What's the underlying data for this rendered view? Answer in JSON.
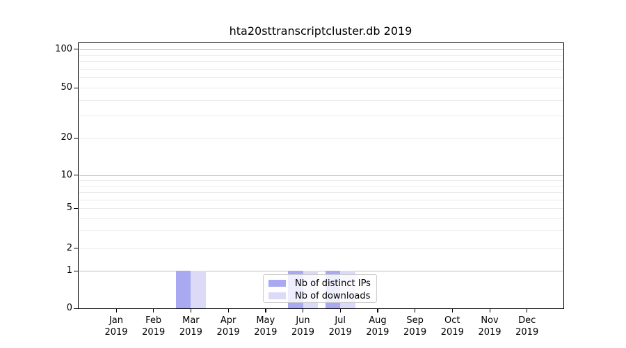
{
  "chart_data": {
    "type": "bar",
    "title": "hta20sttranscriptcluster.db 2019",
    "categories": [
      "Jan 2019",
      "Feb 2019",
      "Mar 2019",
      "Apr 2019",
      "May 2019",
      "Jun 2019",
      "Jul 2019",
      "Aug 2019",
      "Sep 2019",
      "Oct 2019",
      "Nov 2019",
      "Dec 2019"
    ],
    "series": [
      {
        "name": "Nb of distinct IPs",
        "color": "#a9a9f1",
        "values": [
          0,
          0,
          1,
          0,
          0,
          1,
          1,
          0,
          0,
          0,
          0,
          0
        ]
      },
      {
        "name": "Nb of downloads",
        "color": "#dbdbf8",
        "values": [
          0,
          0,
          1,
          0,
          0,
          1,
          1,
          0,
          0,
          0,
          0,
          0
        ]
      }
    ],
    "xlabel": "",
    "ylabel": "",
    "ylim": [
      0,
      100
    ],
    "y_axis": {
      "scale": "symlog",
      "tick_values": [
        0,
        1,
        2,
        5,
        10,
        20,
        50,
        100
      ],
      "major_grid_values": [
        1,
        10,
        100
      ],
      "minor_grid_values": [
        2,
        3,
        4,
        5,
        6,
        7,
        8,
        9,
        20,
        30,
        40,
        50,
        60,
        70,
        80,
        90
      ]
    },
    "grid": "on",
    "legend": {
      "position": "bottom-center",
      "entries": [
        "Nb of distinct IPs",
        "Nb of downloads"
      ]
    }
  },
  "colors": {
    "bar_distinct_ips": "#a9a9f1",
    "bar_downloads": "#dbdbf8",
    "major_grid": "#bbbbbb",
    "minor_grid": "#eaeaea",
    "axis": "#000000",
    "legend_border": "#cccccc",
    "background": "#ffffff"
  }
}
